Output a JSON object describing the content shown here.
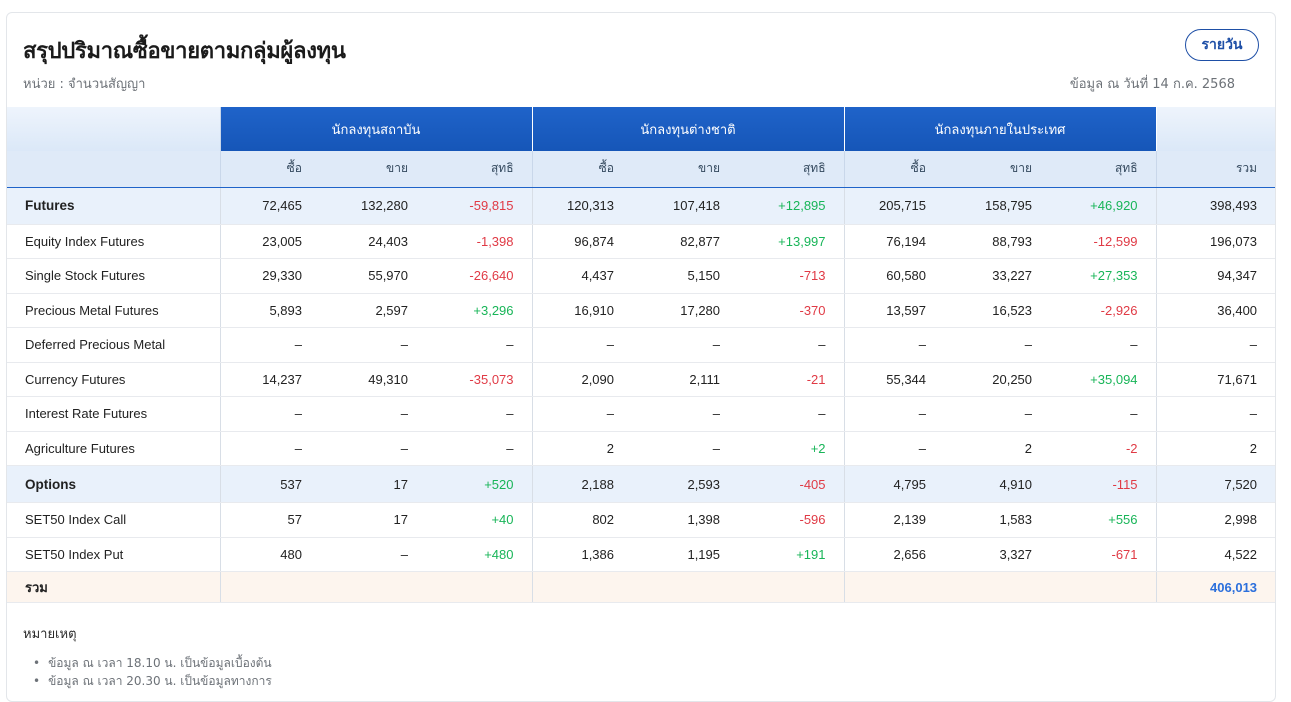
{
  "header": {
    "title": "สรุปปริมาณซื้อขายตามกลุ่มผู้ลงทุน",
    "unit": "หน่วย : จำนวนสัญญา",
    "as_of": "ข้อมูล ณ วันที่ 14 ก.ค. 2568",
    "period_button": "รายวัน"
  },
  "table": {
    "groups": [
      "นักลงทุนสถาบัน",
      "นักลงทุนต่างชาติ",
      "นักลงทุนภายในประเทศ"
    ],
    "sub_headers": {
      "buy": "ซื้อ",
      "sell": "ขาย",
      "net": "สุทธิ",
      "total": "รวม"
    },
    "rows": [
      {
        "label": "Futures",
        "group": true,
        "values": [
          "72,465",
          "132,280",
          "-59,815",
          "120,313",
          "107,418",
          "+12,895",
          "205,715",
          "158,795",
          "+46,920",
          "398,493"
        ]
      },
      {
        "label": "Equity Index Futures",
        "values": [
          "23,005",
          "24,403",
          "-1,398",
          "96,874",
          "82,877",
          "+13,997",
          "76,194",
          "88,793",
          "-12,599",
          "196,073"
        ]
      },
      {
        "label": "Single Stock Futures",
        "values": [
          "29,330",
          "55,970",
          "-26,640",
          "4,437",
          "5,150",
          "-713",
          "60,580",
          "33,227",
          "+27,353",
          "94,347"
        ]
      },
      {
        "label": "Precious Metal Futures",
        "values": [
          "5,893",
          "2,597",
          "+3,296",
          "16,910",
          "17,280",
          "-370",
          "13,597",
          "16,523",
          "-2,926",
          "36,400"
        ]
      },
      {
        "label": "Deferred Precious Metal",
        "values": [
          "–",
          "–",
          "–",
          "–",
          "–",
          "–",
          "–",
          "–",
          "–",
          "–"
        ]
      },
      {
        "label": "Currency Futures",
        "values": [
          "14,237",
          "49,310",
          "-35,073",
          "2,090",
          "2,111",
          "-21",
          "55,344",
          "20,250",
          "+35,094",
          "71,671"
        ]
      },
      {
        "label": "Interest Rate Futures",
        "values": [
          "–",
          "–",
          "–",
          "–",
          "–",
          "–",
          "–",
          "–",
          "–",
          "–"
        ]
      },
      {
        "label": "Agriculture Futures",
        "values": [
          "–",
          "–",
          "–",
          "2",
          "–",
          "+2",
          "–",
          "2",
          "-2",
          "2"
        ]
      },
      {
        "label": "Options",
        "group": true,
        "values": [
          "537",
          "17",
          "+520",
          "2,188",
          "2,593",
          "-405",
          "4,795",
          "4,910",
          "-115",
          "7,520"
        ]
      },
      {
        "label": "SET50 Index Call",
        "values": [
          "57",
          "17",
          "+40",
          "802",
          "1,398",
          "-596",
          "2,139",
          "1,583",
          "+556",
          "2,998"
        ]
      },
      {
        "label": "SET50 Index Put",
        "values": [
          "480",
          "–",
          "+480",
          "1,386",
          "1,195",
          "+191",
          "2,656",
          "3,327",
          "-671",
          "4,522"
        ]
      }
    ],
    "total_label": "รวม",
    "grand_total": "406,013"
  },
  "notes": {
    "title": "หมายเหตุ",
    "items": [
      "ข้อมูล ณ เวลา 18.10 น. เป็นข้อมูลเบื้องต้น",
      "ข้อมูล ณ เวลา 20.30 น. เป็นข้อมูลทางการ"
    ]
  },
  "colors": {
    "primary": "#1f63c9",
    "positive": "#18b558",
    "negative": "#e03a45",
    "total": "#2b6fdc"
  }
}
